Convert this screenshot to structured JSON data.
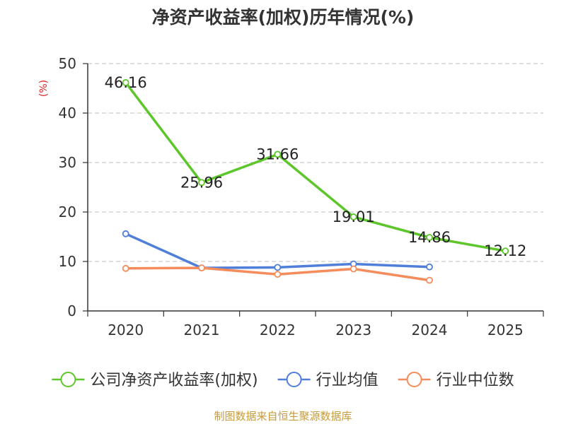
{
  "chart_data": {
    "type": "line",
    "title": "净资产收益率(加权)历年情况(%)",
    "ylabel": "(%)",
    "xlabel": "",
    "categories": [
      "2020",
      "2021",
      "2022",
      "2023",
      "2024",
      "2025"
    ],
    "ylim": [
      0,
      50
    ],
    "yticks": [
      0,
      10,
      20,
      30,
      40,
      50
    ],
    "grid": true,
    "legend_position": "bottom",
    "series": [
      {
        "name": "公司净资产收益率(加权)",
        "color": "#5cc62a",
        "values": [
          46.16,
          25.96,
          31.66,
          19.01,
          14.86,
          12.12
        ],
        "labels": [
          "46.16",
          "25.96",
          "31.66",
          "19.01",
          "14.86",
          "12.12"
        ]
      },
      {
        "name": "行业均值",
        "color": "#4f7fd9",
        "values": [
          15.6,
          8.7,
          8.8,
          9.5,
          8.9,
          null
        ]
      },
      {
        "name": "行业中位数",
        "color": "#f58c5c",
        "values": [
          8.6,
          8.7,
          7.4,
          8.5,
          6.2,
          null
        ]
      }
    ]
  },
  "footer": {
    "source": "制图数据来自恒生聚源数据库"
  },
  "colors": {
    "title": "#333333",
    "axis": "#333333",
    "grid": "#cccccc",
    "ylabel": "#e02020",
    "source": "#c79a3a"
  }
}
